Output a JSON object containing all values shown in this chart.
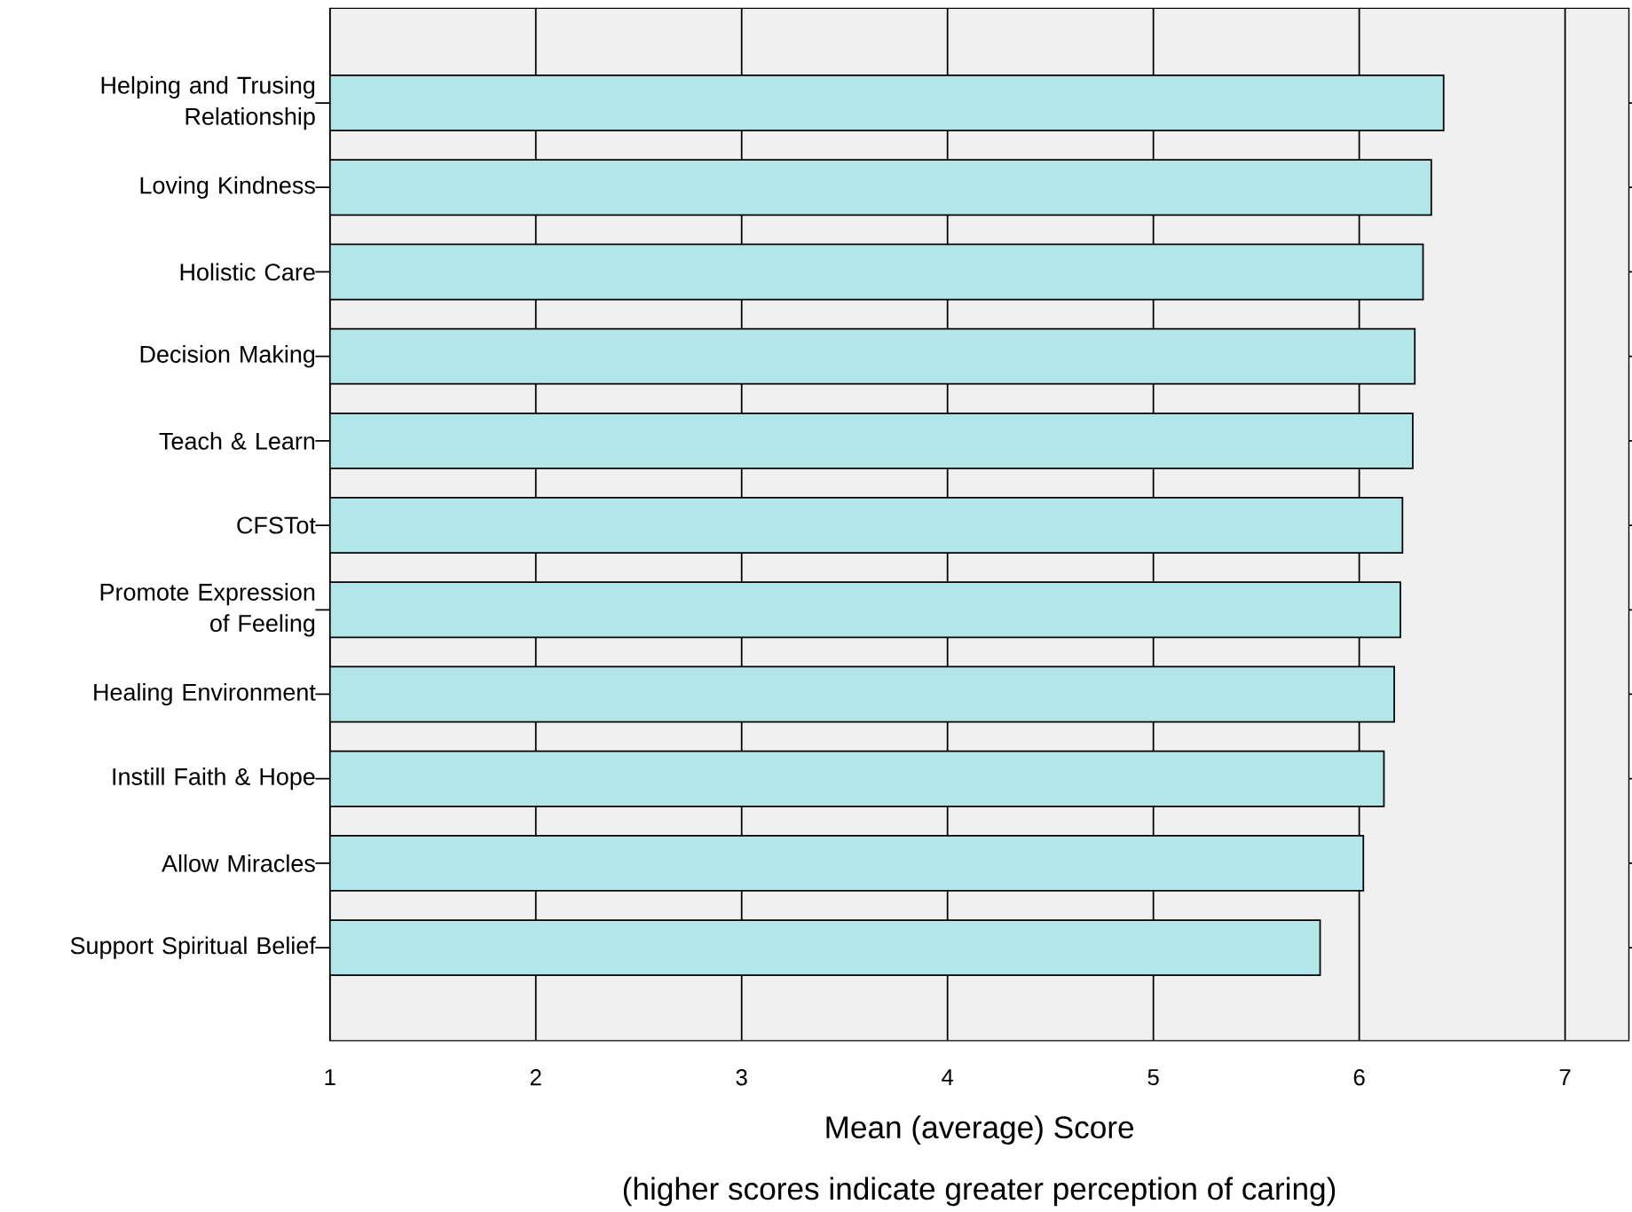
{
  "chart_data": {
    "type": "bar",
    "orientation": "horizontal",
    "categories": [
      "Helping and Trusing Relationship",
      "Loving Kindness",
      "Holistic Care",
      "Decision Making",
      "Teach & Learn",
      "CFSTot",
      "Promote Expression of Feeling",
      "Healing Environment",
      "Instill Faith & Hope",
      "Allow Miracles",
      "Support Spiritual Belief"
    ],
    "values": [
      6.41,
      6.35,
      6.31,
      6.27,
      6.26,
      6.21,
      6.2,
      6.17,
      6.12,
      6.02,
      5.81
    ],
    "color": "#b3e6e8",
    "xlim": [
      1,
      7.31
    ],
    "xticks": [
      1,
      2,
      3,
      4,
      5,
      6,
      7
    ],
    "grid": "x",
    "xlabel": "Mean (average) Score",
    "annotations": [
      "(higher scores indicate greater perception of caring)"
    ]
  }
}
